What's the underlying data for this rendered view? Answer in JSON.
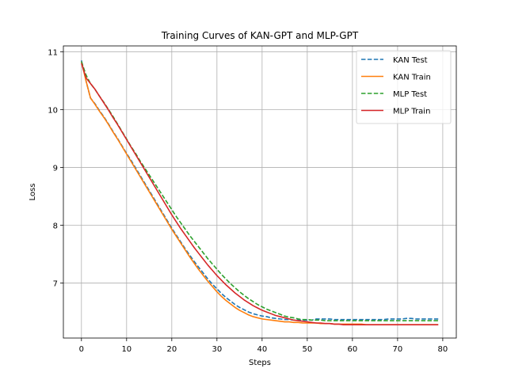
{
  "chart_data": {
    "type": "line",
    "title": "Training Curves of KAN-GPT and MLP-GPT",
    "xlabel": "Steps",
    "ylabel": "Loss",
    "xlim": [
      -4,
      83
    ],
    "ylim": [
      6.05,
      11.1
    ],
    "xticks": [
      0,
      10,
      20,
      30,
      40,
      50,
      60,
      70,
      80
    ],
    "yticks": [
      7,
      8,
      9,
      10,
      11
    ],
    "grid": true,
    "legend_position": "top-right",
    "x": [
      0,
      1,
      2,
      3,
      4,
      5,
      6,
      7,
      8,
      9,
      10,
      11,
      12,
      13,
      14,
      15,
      16,
      17,
      18,
      19,
      20,
      21,
      22,
      23,
      24,
      25,
      26,
      27,
      28,
      29,
      30,
      31,
      32,
      33,
      34,
      35,
      36,
      37,
      38,
      39,
      40,
      41,
      42,
      43,
      44,
      45,
      46,
      47,
      48,
      49,
      50,
      51,
      52,
      53,
      54,
      55,
      56,
      57,
      58,
      59,
      60,
      61,
      62,
      63,
      64,
      65,
      66,
      67,
      68,
      69,
      70,
      71,
      72,
      73,
      74,
      75,
      76,
      77,
      78,
      79
    ],
    "series": [
      {
        "name": "KAN Test",
        "color": "#1f77b4",
        "style": "dashed",
        "values": [
          10.85,
          10.5,
          10.2,
          10.1,
          9.98,
          9.87,
          9.75,
          9.62,
          9.5,
          9.37,
          9.24,
          9.12,
          8.99,
          8.86,
          8.73,
          8.6,
          8.47,
          8.34,
          8.21,
          8.08,
          7.95,
          7.83,
          7.71,
          7.59,
          7.48,
          7.37,
          7.27,
          7.17,
          7.07,
          6.98,
          6.9,
          6.82,
          6.75,
          6.69,
          6.63,
          6.58,
          6.54,
          6.5,
          6.47,
          6.45,
          6.43,
          6.42,
          6.4,
          6.39,
          6.38,
          6.37,
          6.37,
          6.36,
          6.36,
          6.36,
          6.36,
          6.36,
          6.38,
          6.38,
          6.38,
          6.38,
          6.37,
          6.37,
          6.37,
          6.37,
          6.37,
          6.37,
          6.37,
          6.37,
          6.37,
          6.37,
          6.37,
          6.37,
          6.38,
          6.38,
          6.38,
          6.38,
          6.39,
          6.39,
          6.38,
          6.38,
          6.38,
          6.38,
          6.38,
          6.38
        ]
      },
      {
        "name": "KAN Train",
        "color": "#ff7f0e",
        "style": "solid",
        "values": [
          10.83,
          10.5,
          10.2,
          10.09,
          9.97,
          9.86,
          9.74,
          9.61,
          9.49,
          9.36,
          9.23,
          9.1,
          8.97,
          8.84,
          8.71,
          8.58,
          8.45,
          8.32,
          8.19,
          8.06,
          7.93,
          7.81,
          7.69,
          7.57,
          7.45,
          7.34,
          7.23,
          7.13,
          7.03,
          6.94,
          6.85,
          6.77,
          6.7,
          6.64,
          6.58,
          6.53,
          6.49,
          6.45,
          6.42,
          6.4,
          6.38,
          6.37,
          6.36,
          6.35,
          6.34,
          6.33,
          6.33,
          6.32,
          6.32,
          6.31,
          6.31,
          6.31,
          6.31,
          6.3,
          6.3,
          6.3,
          6.29,
          6.29,
          6.29,
          6.29,
          6.29,
          6.29,
          6.29,
          6.28,
          6.28,
          6.28,
          6.28,
          6.28,
          6.28,
          6.28,
          6.28,
          6.28,
          6.28,
          6.28,
          6.28,
          6.28,
          6.28,
          6.28,
          6.28,
          6.28
        ]
      },
      {
        "name": "MLP Test",
        "color": "#2ca02c",
        "style": "dashed",
        "values": [
          10.83,
          10.6,
          10.45,
          10.35,
          10.23,
          10.12,
          10.0,
          9.88,
          9.75,
          9.62,
          9.49,
          9.36,
          9.24,
          9.11,
          8.99,
          8.87,
          8.75,
          8.63,
          8.51,
          8.39,
          8.27,
          8.15,
          8.04,
          7.93,
          7.82,
          7.72,
          7.62,
          7.52,
          7.42,
          7.33,
          7.24,
          7.15,
          7.07,
          6.99,
          6.92,
          6.85,
          6.79,
          6.73,
          6.68,
          6.63,
          6.59,
          6.55,
          6.52,
          6.49,
          6.46,
          6.43,
          6.41,
          6.4,
          6.38,
          6.37,
          6.37,
          6.36,
          6.36,
          6.36,
          6.35,
          6.35,
          6.35,
          6.35,
          6.35,
          6.35,
          6.35,
          6.35,
          6.35,
          6.35,
          6.35,
          6.35,
          6.35,
          6.35,
          6.35,
          6.35,
          6.35,
          6.35,
          6.35,
          6.35,
          6.35,
          6.35,
          6.35,
          6.35,
          6.35,
          6.35
        ]
      },
      {
        "name": "MLP Train",
        "color": "#d62728",
        "style": "solid",
        "values": [
          10.8,
          10.55,
          10.45,
          10.35,
          10.23,
          10.11,
          9.99,
          9.86,
          9.74,
          9.61,
          9.48,
          9.35,
          9.22,
          9.09,
          8.96,
          8.83,
          8.7,
          8.57,
          8.44,
          8.31,
          8.18,
          8.06,
          7.94,
          7.83,
          7.72,
          7.61,
          7.51,
          7.41,
          7.31,
          7.22,
          7.13,
          7.05,
          6.97,
          6.9,
          6.83,
          6.77,
          6.71,
          6.66,
          6.61,
          6.57,
          6.53,
          6.5,
          6.47,
          6.44,
          6.42,
          6.4,
          6.38,
          6.36,
          6.35,
          6.34,
          6.33,
          6.32,
          6.31,
          6.31,
          6.3,
          6.3,
          6.29,
          6.29,
          6.28,
          6.28,
          6.28,
          6.28,
          6.28,
          6.28,
          6.28,
          6.28,
          6.28,
          6.28,
          6.28,
          6.28,
          6.28,
          6.28,
          6.28,
          6.28,
          6.28,
          6.28,
          6.28,
          6.28,
          6.28,
          6.28
        ]
      }
    ]
  }
}
